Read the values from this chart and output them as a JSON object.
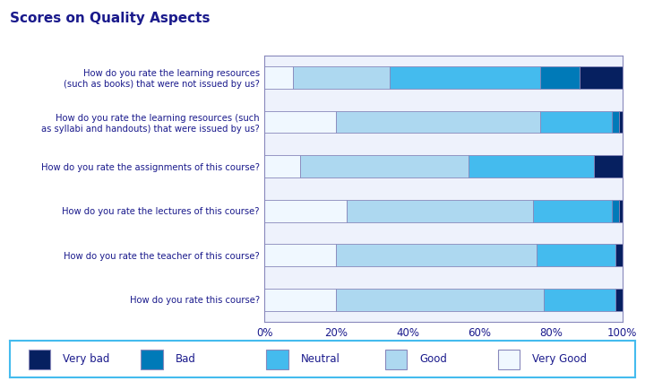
{
  "title": "Scores on Quality Aspects",
  "title_color": "#1a1a8c",
  "title_fontsize": 11,
  "categories": [
    "How do you rate this course?",
    "How do you rate the teacher of this course?",
    "How do you rate the lectures of this course?",
    "How do you rate the assignments of this course?",
    "How do you rate the learning resources (such\nas syllabi and handouts) that were issued by us?",
    "How do you rate the learning resources\n(such as books) that were not issued by us?"
  ],
  "segments": {
    "Very Good": [
      20,
      20,
      23,
      10,
      20,
      8
    ],
    "Good": [
      58,
      56,
      52,
      47,
      57,
      27
    ],
    "Neutral": [
      20,
      22,
      22,
      35,
      20,
      42
    ],
    "Bad": [
      0,
      0,
      2,
      0,
      2,
      11
    ],
    "Very bad": [
      2,
      2,
      1,
      8,
      1,
      12
    ]
  },
  "colors": {
    "Very Good": "#f0f8ff",
    "Good": "#add8f0",
    "Neutral": "#44bbee",
    "Bad": "#007ab8",
    "Very bad": "#062060"
  },
  "legend_labels": [
    "Very bad",
    "Bad",
    "Neutral",
    "Good",
    "Very Good"
  ],
  "xlabel_ticks": [
    "0%",
    "20%",
    "40%",
    "60%",
    "80%",
    "100%"
  ],
  "background_color": "#ffffff",
  "plot_bg_color": "#eef2fc",
  "border_color": "#8888bb",
  "legend_border_color": "#44bbee",
  "bar_height": 0.5
}
